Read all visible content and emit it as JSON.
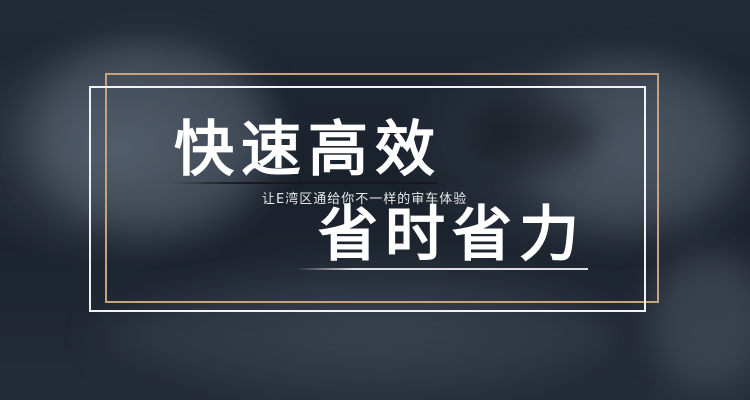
{
  "headline_primary": "快速高效",
  "subtitle": "让E湾区通给你不一样的审车体验",
  "headline_secondary": "省时省力",
  "colors": {
    "background": "#1f2733",
    "gold_frame": "#c9a27a",
    "white_frame": "#f2f2f2",
    "text": "#ffffff"
  }
}
